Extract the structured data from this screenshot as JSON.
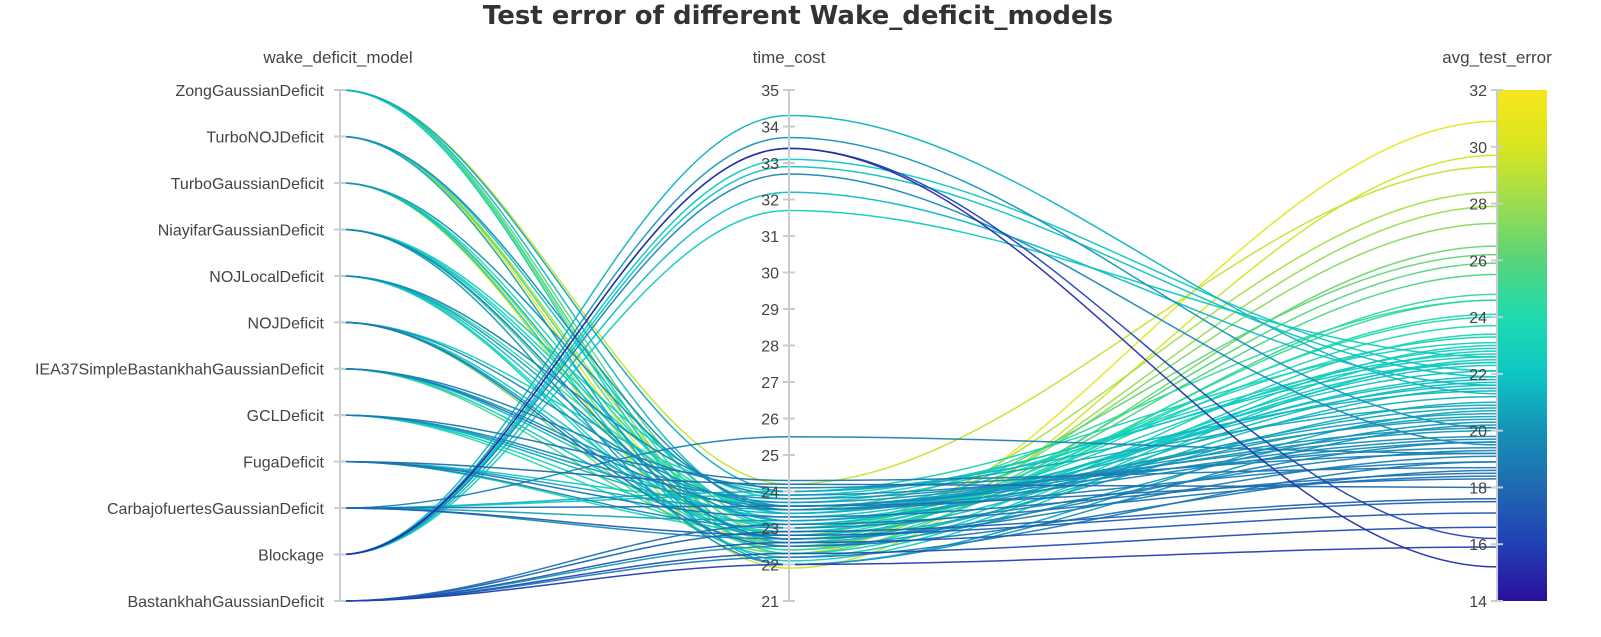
{
  "chart_data": {
    "type": "parallel_coordinates",
    "title": "Test error of different Wake_deficit_models",
    "dimensions": [
      {
        "name": "wake_deficit_model",
        "kind": "categorical",
        "categories": [
          "ZongGaussianDeficit",
          "TurboNOJDeficit",
          "TurboGaussianDeficit",
          "NiayifarGaussianDeficit",
          "NOJLocalDeficit",
          "NOJDeficit",
          "IEA37SimpleBastankhahGaussianDeficit",
          "GCLDeficit",
          "FugaDeficit",
          "CarbajofuertesGaussianDeficit",
          "Blockage",
          "BastankhahGaussianDeficit"
        ]
      },
      {
        "name": "time_cost",
        "kind": "numeric",
        "range": [
          21,
          35
        ],
        "ticks": [
          "21",
          "22",
          "23",
          "24",
          "25",
          "26",
          "27",
          "28",
          "29",
          "30",
          "31",
          "32",
          "33",
          "34",
          "35"
        ]
      },
      {
        "name": "avg_test_error",
        "kind": "numeric",
        "range": [
          14,
          32
        ],
        "ticks": [
          "14",
          "16",
          "18",
          "20",
          "22",
          "24",
          "26",
          "28",
          "30",
          "32"
        ]
      }
    ],
    "colorscale": {
      "dimension": "avg_test_error",
      "range": [
        14,
        32
      ],
      "colors": [
        "#2a0f9c",
        "#2040b4",
        "#1f6ab0",
        "#1592b8",
        "#0dc6c4",
        "#1fdbb0",
        "#58d47a",
        "#9cdc4f",
        "#d8e61e",
        "#f8e61c"
      ]
    },
    "records": [
      [
        "Blockage",
        33.4,
        16.2
      ],
      [
        "Blockage",
        33.4,
        15.2
      ],
      [
        "Blockage",
        32.7,
        19.5
      ],
      [
        "Blockage",
        34.3,
        21.3
      ],
      [
        "Blockage",
        33.7,
        20.1
      ],
      [
        "Blockage",
        33.1,
        22.1
      ],
      [
        "Blockage",
        32.2,
        21.6
      ],
      [
        "Blockage",
        31.7,
        22.6
      ],
      [
        "Blockage",
        32.9,
        21.9
      ],
      [
        "BastankhahGaussianDeficit",
        22.0,
        15.9
      ],
      [
        "BastankhahGaussianDeficit",
        22.3,
        16.6
      ],
      [
        "BastankhahGaussianDeficit",
        22.6,
        17.1
      ],
      [
        "BastankhahGaussianDeficit",
        22.9,
        17.6
      ],
      [
        "BastankhahGaussianDeficit",
        23.1,
        18.4
      ],
      [
        "BastankhahGaussianDeficit",
        22.2,
        18.9
      ],
      [
        "BastankhahGaussianDeficit",
        22.5,
        20.3
      ],
      [
        "CarbajofuertesGaussianDeficit",
        25.5,
        19.2
      ],
      [
        "CarbajofuertesGaussianDeficit",
        23.6,
        18.3
      ],
      [
        "CarbajofuertesGaussianDeficit",
        23.2,
        20.8
      ],
      [
        "CarbajofuertesGaussianDeficit",
        24.0,
        21.4
      ],
      [
        "CarbajofuertesGaussianDeficit",
        22.7,
        19.6
      ],
      [
        "CarbajofuertesGaussianDeficit",
        23.9,
        22.4
      ],
      [
        "CarbajofuertesGaussianDeficit",
        22.8,
        17.5
      ],
      [
        "FugaDeficit",
        23.3,
        18.5
      ],
      [
        "FugaDeficit",
        23.0,
        19.3
      ],
      [
        "FugaDeficit",
        23.7,
        22.6
      ],
      [
        "FugaDeficit",
        22.9,
        23.7
      ],
      [
        "FugaDeficit",
        23.5,
        20.6
      ],
      [
        "FugaDeficit",
        24.2,
        18.0
      ],
      [
        "GCLDeficit",
        23.8,
        19.8
      ],
      [
        "GCLDeficit",
        23.4,
        21.2
      ],
      [
        "GCLDeficit",
        23.1,
        22.9
      ],
      [
        "GCLDeficit",
        24.3,
        18.7
      ],
      [
        "GCLDeficit",
        22.8,
        24.1
      ],
      [
        "GCLDeficit",
        23.6,
        20.4
      ],
      [
        "IEA37SimpleBastankhahGaussianDeficit",
        24.1,
        19.2
      ],
      [
        "IEA37SimpleBastankhahGaussianDeficit",
        23.3,
        21.8
      ],
      [
        "IEA37SimpleBastankhahGaussianDeficit",
        22.6,
        25.5
      ],
      [
        "IEA37SimpleBastankhahGaussianDeficit",
        23.7,
        20.1
      ],
      [
        "IEA37SimpleBastankhahGaussianDeficit",
        22.9,
        22.3
      ],
      [
        "IEA37SimpleBastankhahGaussianDeficit",
        23.5,
        18.9
      ],
      [
        "NOJDeficit",
        22.3,
        26.5
      ],
      [
        "NOJDeficit",
        23.0,
        22.4
      ],
      [
        "NOJDeficit",
        23.6,
        19.7
      ],
      [
        "NOJDeficit",
        22.7,
        21.0
      ],
      [
        "NOJDeficit",
        24.0,
        23.1
      ],
      [
        "NOJDeficit",
        22.5,
        18.6
      ],
      [
        "NOJLocalDeficit",
        22.4,
        23.4
      ],
      [
        "NOJLocalDeficit",
        23.2,
        20.5
      ],
      [
        "NOJLocalDeficit",
        22.8,
        21.7
      ],
      [
        "NOJLocalDeficit",
        23.9,
        19.4
      ],
      [
        "NOJLocalDeficit",
        22.2,
        22.8
      ],
      [
        "NOJLocalDeficit",
        23.5,
        24.6
      ],
      [
        "NiayifarGaussianDeficit",
        22.5,
        24.8
      ],
      [
        "NiayifarGaussianDeficit",
        23.1,
        21.9
      ],
      [
        "NiayifarGaussianDeficit",
        22.0,
        20.2
      ],
      [
        "NiayifarGaussianDeficit",
        23.8,
        22.7
      ],
      [
        "NiayifarGaussianDeficit",
        22.7,
        19.1
      ],
      [
        "NiayifarGaussianDeficit",
        23.4,
        23.3
      ],
      [
        "TurboGaussianDeficit",
        21.9,
        29.7
      ],
      [
        "TurboGaussianDeficit",
        22.4,
        27.9
      ],
      [
        "TurboGaussianDeficit",
        23.0,
        24.0
      ],
      [
        "TurboGaussianDeficit",
        22.6,
        21.5
      ],
      [
        "TurboGaussianDeficit",
        23.6,
        20.0
      ],
      [
        "TurboGaussianDeficit",
        22.1,
        22.5
      ],
      [
        "TurboNOJDeficit",
        22.3,
        30.9
      ],
      [
        "TurboNOJDeficit",
        22.8,
        28.4
      ],
      [
        "TurboNOJDeficit",
        22.6,
        25.9
      ],
      [
        "TurboNOJDeficit",
        23.2,
        22.1
      ],
      [
        "TurboNOJDeficit",
        22.0,
        20.7
      ],
      [
        "TurboNOJDeficit",
        23.5,
        19.6
      ],
      [
        "ZongGaussianDeficit",
        24.2,
        29.3
      ],
      [
        "ZongGaussianDeficit",
        22.5,
        27.3
      ],
      [
        "ZongGaussianDeficit",
        23.0,
        26.2
      ],
      [
        "ZongGaussianDeficit",
        22.7,
        24.6
      ],
      [
        "ZongGaussianDeficit",
        23.4,
        21.6
      ],
      [
        "ZongGaussianDeficit",
        22.3,
        23.0
      ],
      [
        "ZongGaussianDeficit",
        24.0,
        20.9
      ]
    ]
  }
}
